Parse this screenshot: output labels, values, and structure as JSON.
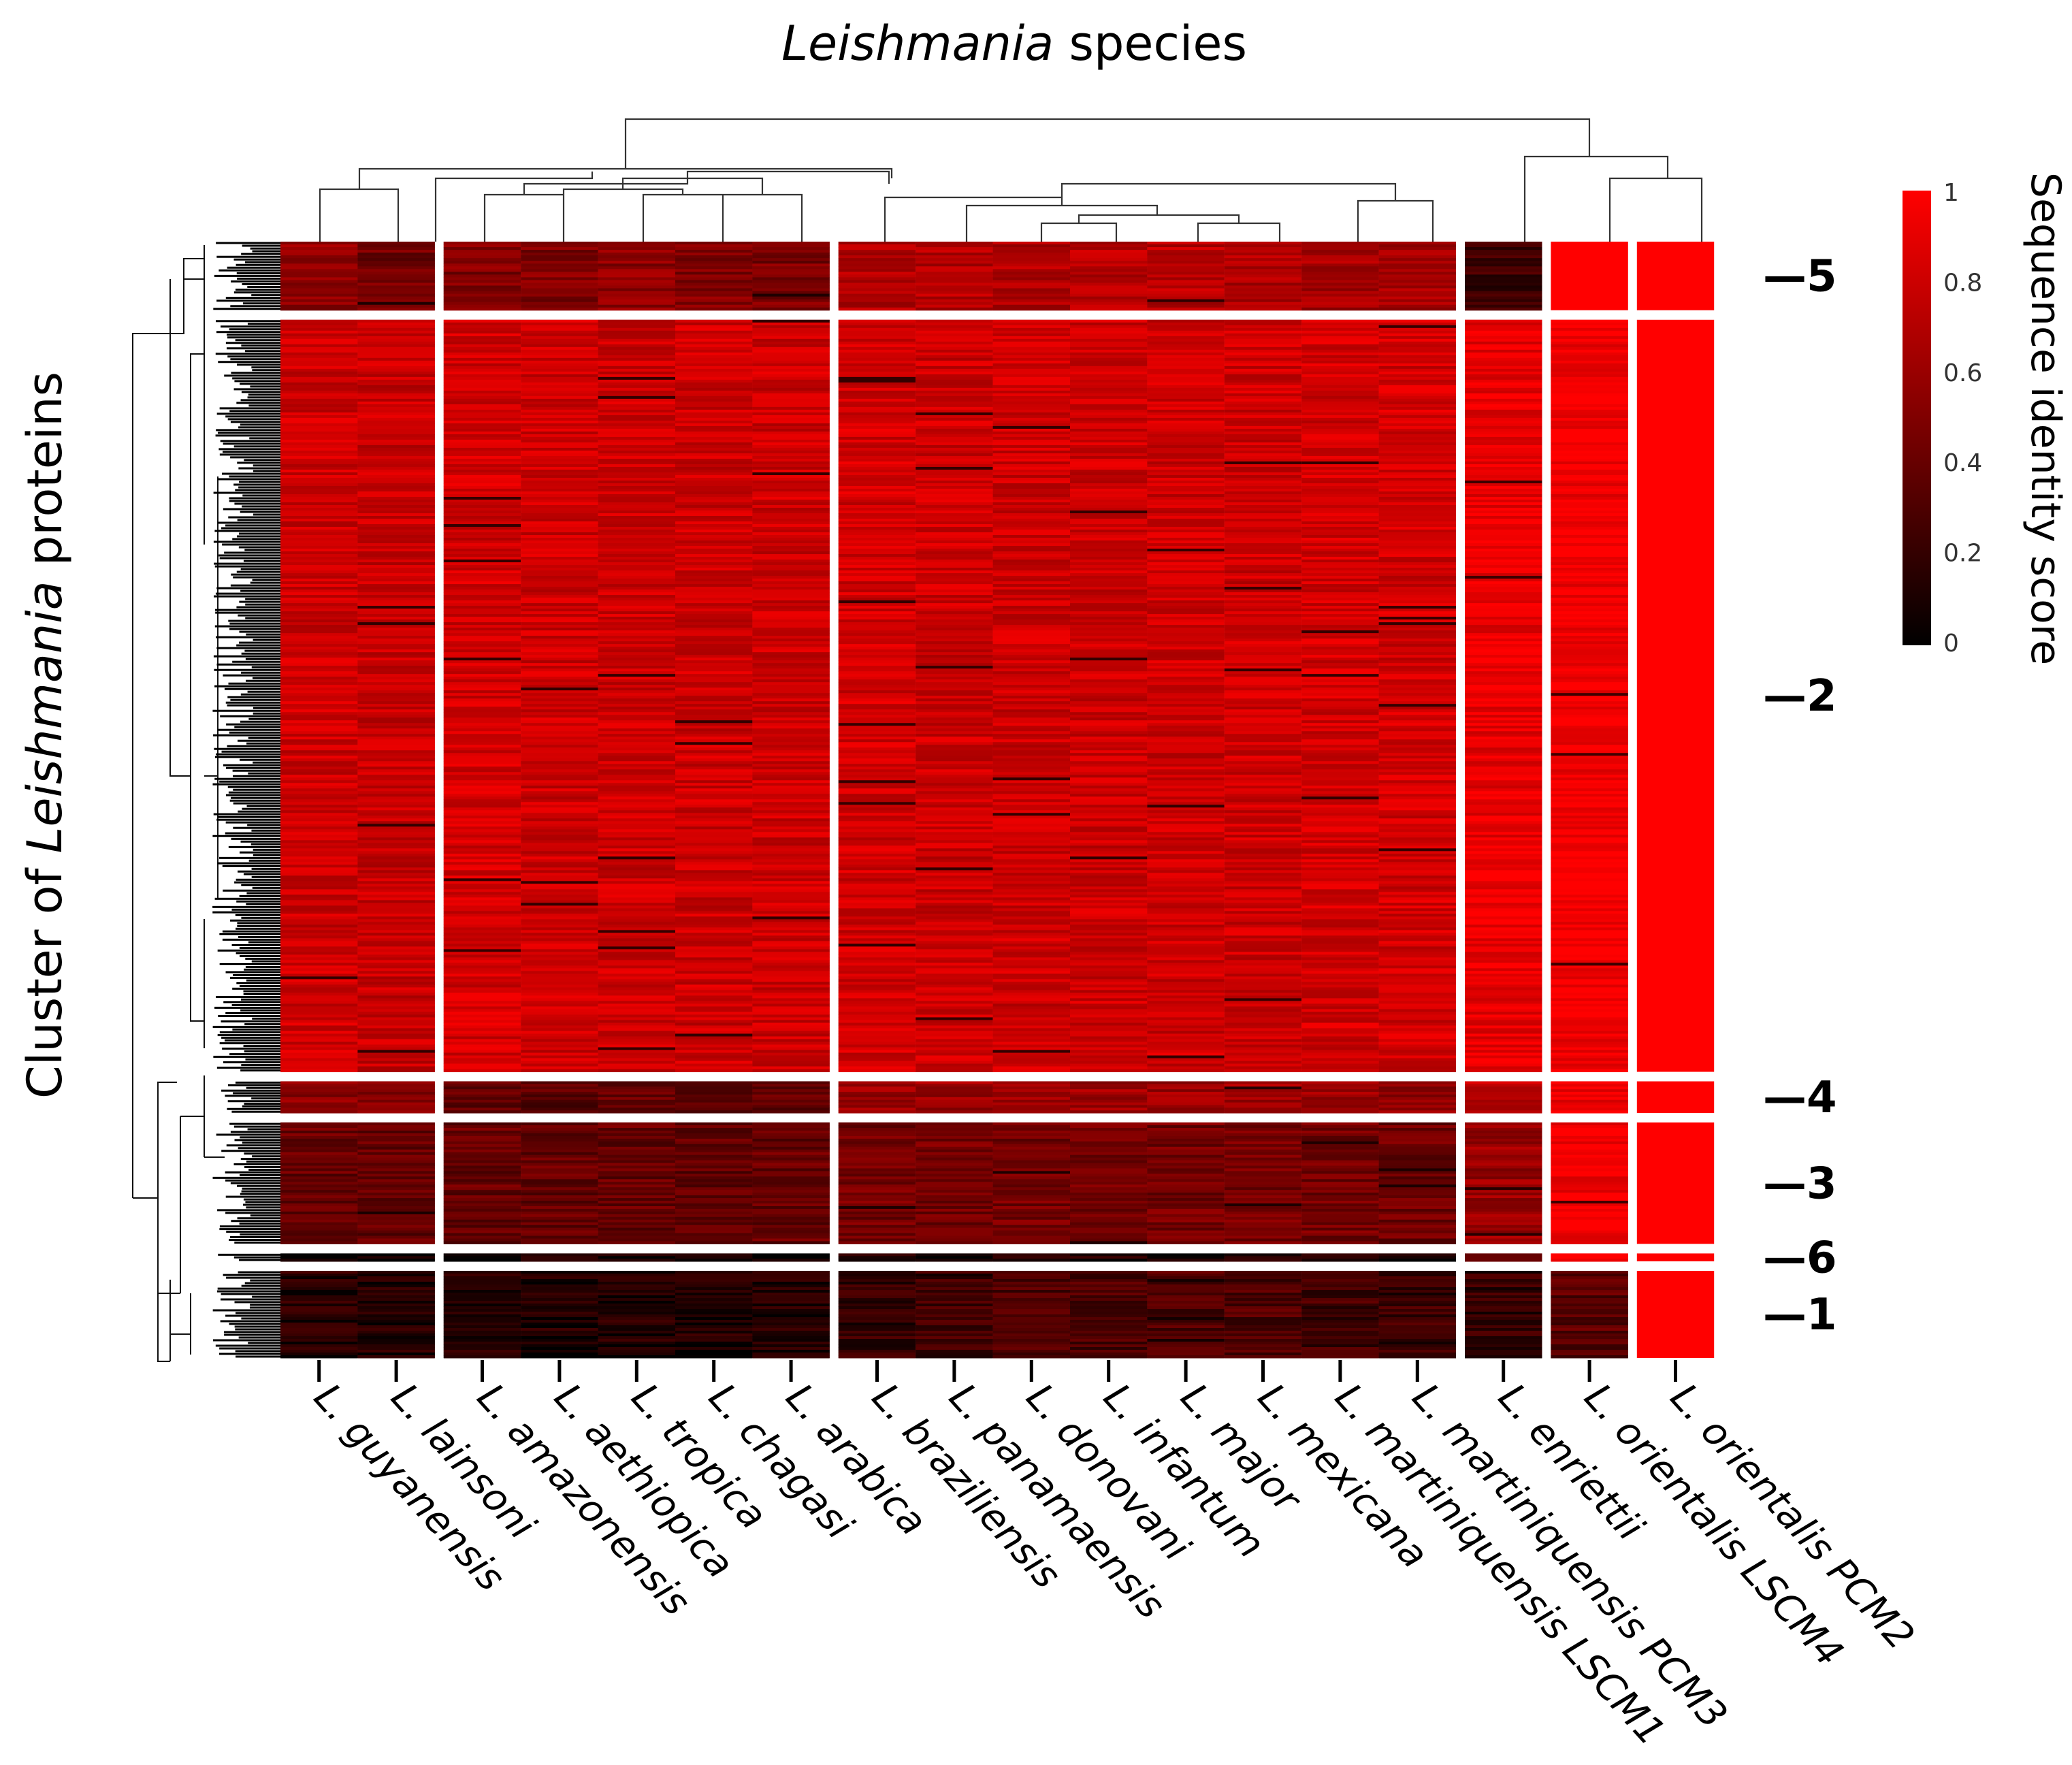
{
  "chart_data": {
    "type": "heatmap",
    "title_italic": "Leishmania",
    "title_rest": " species",
    "ylabel_prefix": "Cluster of ",
    "ylabel_italic": "Leishmania",
    "ylabel_suffix": " proteins",
    "colorbar": {
      "title": "Sequence identity score",
      "ticks": [
        "1",
        "0.8",
        "0.6",
        "0.4",
        "0.2",
        "0"
      ],
      "range": [
        0,
        1
      ],
      "low_color": "#000000",
      "high_color": "#ff0000"
    },
    "columns": [
      "L. guyanensis",
      "L. lainsoni",
      "L. amazonensis",
      "L. aethiopica",
      "L. tropica",
      "L. chagasi",
      "L. arabica",
      "L. braziliensis",
      "L. panamaensis",
      "L. donovani",
      "L. infantum",
      "L. major",
      "L. mexicana",
      "L. martiniquensis LSCM1",
      "L. martiniquensis PCM3",
      "L. enriettii",
      "L. orientalis LSCM4",
      "L. orientalis PCM2"
    ],
    "column_groups": [
      {
        "start": 0,
        "end": 1
      },
      {
        "start": 2,
        "end": 6
      },
      {
        "start": 7,
        "end": 14
      },
      {
        "start": 15,
        "end": 15
      },
      {
        "start": 16,
        "end": 16
      },
      {
        "start": 17,
        "end": 17
      }
    ],
    "clusters": [
      {
        "label": "—5",
        "rows_weight": 52,
        "mean_scores": [
          0.55,
          0.45,
          0.5,
          0.5,
          0.55,
          0.5,
          0.48,
          0.7,
          0.7,
          0.7,
          0.72,
          0.72,
          0.68,
          0.65,
          0.65,
          0.25,
          1.0,
          1.0
        ]
      },
      {
        "label": "—2",
        "rows_weight": 570,
        "mean_scores": [
          0.8,
          0.78,
          0.82,
          0.8,
          0.8,
          0.8,
          0.8,
          0.82,
          0.8,
          0.8,
          0.8,
          0.8,
          0.8,
          0.82,
          0.82,
          0.92,
          0.97,
          1.0
        ]
      },
      {
        "label": "—4",
        "rows_weight": 24,
        "mean_scores": [
          0.55,
          0.5,
          0.4,
          0.35,
          0.4,
          0.35,
          0.4,
          0.6,
          0.62,
          0.6,
          0.62,
          0.62,
          0.62,
          0.6,
          0.55,
          0.75,
          0.9,
          1.0
        ]
      },
      {
        "label": "—3",
        "rows_weight": 92,
        "mean_scores": [
          0.4,
          0.38,
          0.4,
          0.4,
          0.4,
          0.38,
          0.4,
          0.45,
          0.45,
          0.45,
          0.45,
          0.45,
          0.45,
          0.45,
          0.42,
          0.6,
          0.95,
          1.0
        ]
      },
      {
        "label": "—6",
        "rows_weight": 6,
        "mean_scores": [
          0.08,
          0.05,
          0.06,
          0.06,
          0.06,
          0.06,
          0.06,
          0.1,
          0.1,
          0.1,
          0.1,
          0.1,
          0.1,
          0.1,
          0.1,
          0.5,
          0.95,
          1.0
        ]
      },
      {
        "label": "—1",
        "rows_weight": 66,
        "mean_scores": [
          0.15,
          0.13,
          0.12,
          0.12,
          0.12,
          0.12,
          0.12,
          0.2,
          0.25,
          0.28,
          0.3,
          0.3,
          0.3,
          0.25,
          0.25,
          0.2,
          0.35,
          1.0
        ]
      }
    ]
  }
}
